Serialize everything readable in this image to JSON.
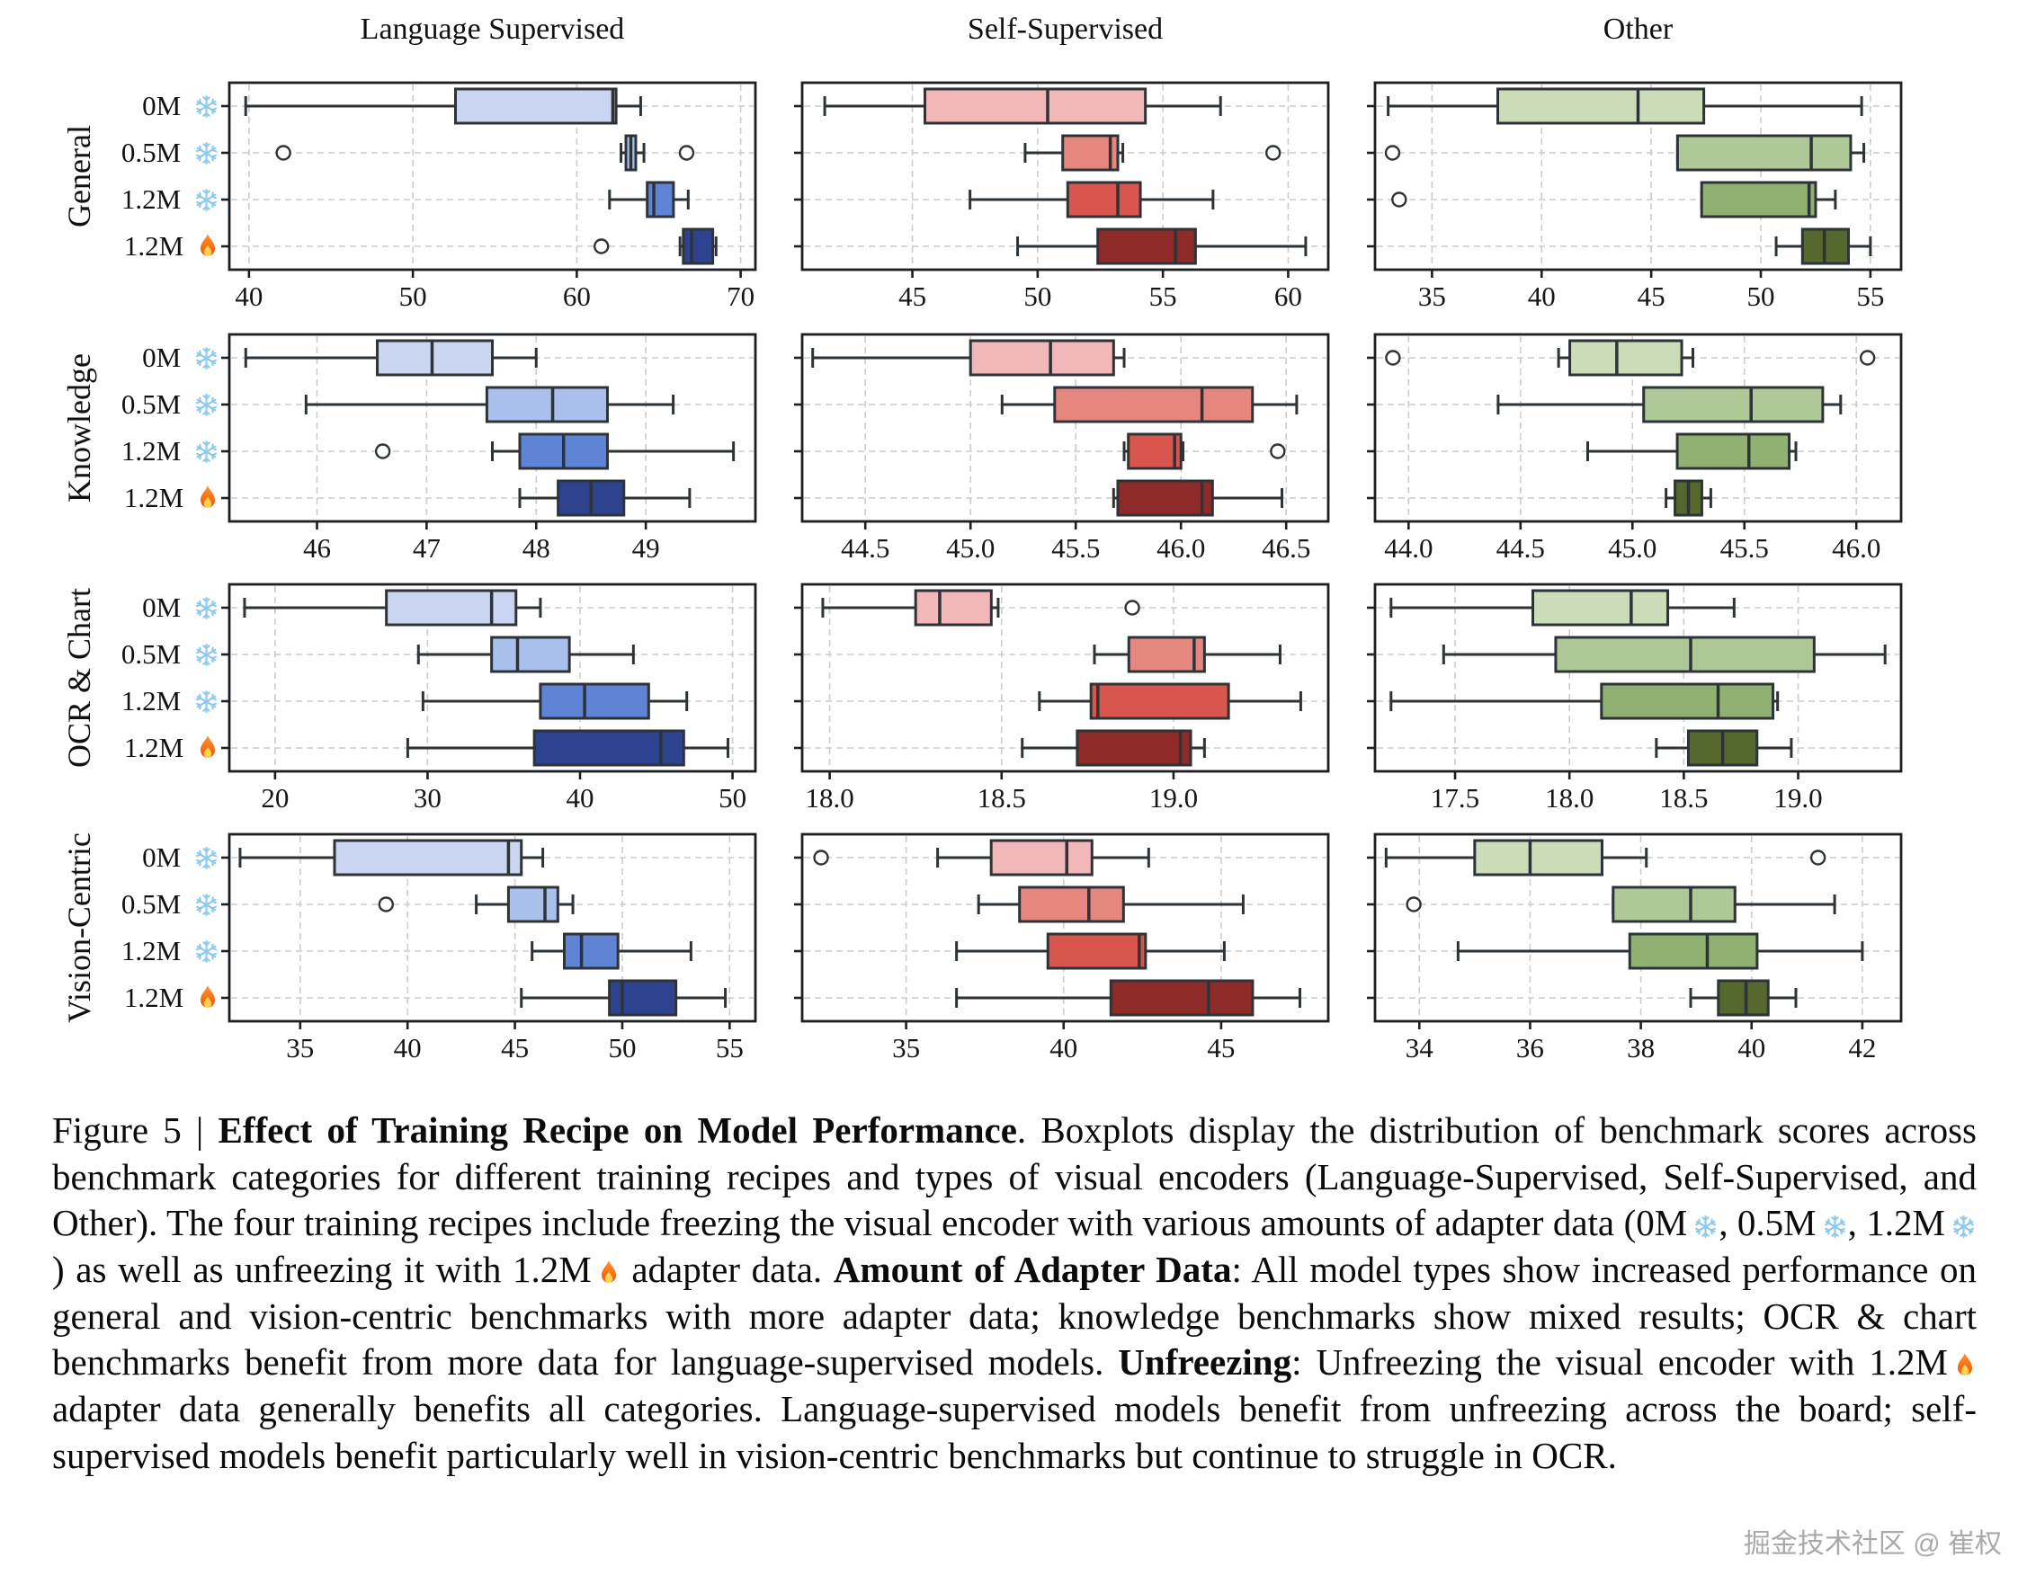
{
  "figure": {
    "col_titles": [
      "Language Supervised",
      "Self-Supervised",
      "Other"
    ],
    "row_labels": [
      "General",
      "Knowledge",
      "OCR & Chart",
      "Vision-Centric"
    ],
    "recipes": [
      "0M {snow}",
      "0.5M {snow}",
      "1.2M {snow}",
      "1.2M {fire}"
    ],
    "icons": {
      "snow": "snowflake-icon",
      "fire": "fire-icon"
    },
    "colors": {
      "language_supervised": [
        "#c9d5f1",
        "#a9c0ec",
        "#5f84d5",
        "#2e4390"
      ],
      "self_supervised": [
        "#f2b7b8",
        "#e6877f",
        "#d8564d",
        "#8e2b28"
      ],
      "other": [
        "#cbdcb8",
        "#afc897",
        "#91b173",
        "#55682e"
      ],
      "box_edge": "#2e3338",
      "grid": "#cccccc",
      "spine": "#1b1f23",
      "snowflake": "#8ec9ee",
      "fire_outer": "#f97316",
      "fire_inner": "#ffd34d"
    }
  },
  "chart_data": [
    {
      "type": "boxplot",
      "orientation": "horizontal",
      "row": "General",
      "col": "Language Supervised",
      "xlim": [
        38.8,
        70.9
      ],
      "tick_values": [
        40,
        50,
        60,
        70
      ],
      "tick_labels": [
        "40",
        "50",
        "60",
        "70"
      ],
      "boxes": [
        {
          "label": "0M snow",
          "whislo": 39.8,
          "q1": 52.6,
          "med": 62.2,
          "q3": 62.4,
          "whishi": 63.9,
          "outliers": []
        },
        {
          "label": "0.5M snow",
          "whislo": 62.7,
          "q1": 63.0,
          "med": 63.3,
          "q3": 63.6,
          "whishi": 64.1,
          "outliers": [
            42.1,
            66.7
          ]
        },
        {
          "label": "1.2M snow",
          "whislo": 62.0,
          "q1": 64.3,
          "med": 64.7,
          "q3": 65.9,
          "whishi": 66.8,
          "outliers": []
        },
        {
          "label": "1.2M fire",
          "whislo": 66.3,
          "q1": 66.5,
          "med": 67.0,
          "q3": 68.3,
          "whishi": 68.5,
          "outliers": [
            61.5
          ]
        }
      ]
    },
    {
      "type": "boxplot",
      "orientation": "horizontal",
      "row": "General",
      "col": "Self-Supervised",
      "xlim": [
        40.6,
        61.6
      ],
      "tick_values": [
        45,
        50,
        55,
        60
      ],
      "tick_labels": [
        "45",
        "50",
        "55",
        "60"
      ],
      "boxes": [
        {
          "label": "0M snow",
          "whislo": 41.5,
          "q1": 45.5,
          "med": 50.4,
          "q3": 54.3,
          "whishi": 57.3,
          "outliers": []
        },
        {
          "label": "0.5M snow",
          "whislo": 49.5,
          "q1": 51.0,
          "med": 52.9,
          "q3": 53.2,
          "whishi": 53.4,
          "outliers": [
            59.4
          ]
        },
        {
          "label": "1.2M snow",
          "whislo": 47.3,
          "q1": 51.2,
          "med": 53.2,
          "q3": 54.1,
          "whishi": 57.0,
          "outliers": []
        },
        {
          "label": "1.2M fire",
          "whislo": 49.2,
          "q1": 52.4,
          "med": 55.5,
          "q3": 56.3,
          "whishi": 60.7,
          "outliers": []
        }
      ]
    },
    {
      "type": "boxplot",
      "orientation": "horizontal",
      "row": "General",
      "col": "Other",
      "xlim": [
        32.4,
        56.4
      ],
      "tick_values": [
        35,
        40,
        45,
        50,
        55
      ],
      "tick_labels": [
        "35",
        "40",
        "45",
        "50",
        "55"
      ],
      "boxes": [
        {
          "label": "0M snow",
          "whislo": 33.0,
          "q1": 38.0,
          "med": 44.4,
          "q3": 47.4,
          "whishi": 54.6,
          "outliers": []
        },
        {
          "label": "0.5M snow",
          "whislo": 46.2,
          "q1": 46.2,
          "med": 52.3,
          "q3": 54.1,
          "whishi": 54.7,
          "outliers": [
            33.2
          ]
        },
        {
          "label": "1.2M snow",
          "whislo": 47.3,
          "q1": 47.3,
          "med": 52.2,
          "q3": 52.5,
          "whishi": 53.4,
          "outliers": [
            33.5
          ]
        },
        {
          "label": "1.2M fire",
          "whislo": 50.7,
          "q1": 51.9,
          "med": 52.9,
          "q3": 54.0,
          "whishi": 55.0,
          "outliers": []
        }
      ]
    },
    {
      "type": "boxplot",
      "orientation": "horizontal",
      "row": "Knowledge",
      "col": "Language Supervised",
      "xlim": [
        45.2,
        50.0
      ],
      "tick_values": [
        46,
        47,
        48,
        49
      ],
      "tick_labels": [
        "46",
        "47",
        "48",
        "49"
      ],
      "boxes": [
        {
          "label": "0M snow",
          "whislo": 45.35,
          "q1": 46.55,
          "med": 47.05,
          "q3": 47.6,
          "whishi": 48.0,
          "outliers": []
        },
        {
          "label": "0.5M snow",
          "whislo": 45.9,
          "q1": 47.55,
          "med": 48.15,
          "q3": 48.65,
          "whishi": 49.25,
          "outliers": []
        },
        {
          "label": "1.2M snow",
          "whislo": 47.6,
          "q1": 47.85,
          "med": 48.25,
          "q3": 48.65,
          "whishi": 49.8,
          "outliers": [
            46.6
          ]
        },
        {
          "label": "1.2M fire",
          "whislo": 47.85,
          "q1": 48.2,
          "med": 48.5,
          "q3": 48.8,
          "whishi": 49.4,
          "outliers": []
        }
      ]
    },
    {
      "type": "boxplot",
      "orientation": "horizontal",
      "row": "Knowledge",
      "col": "Self-Supervised",
      "xlim": [
        44.2,
        46.7
      ],
      "tick_values": [
        44.5,
        45.0,
        45.5,
        46.0,
        46.5
      ],
      "tick_labels": [
        "44.5",
        "45.0",
        "45.5",
        "46.0",
        "46.5"
      ],
      "boxes": [
        {
          "label": "0M snow",
          "whislo": 44.25,
          "q1": 45.0,
          "med": 45.38,
          "q3": 45.68,
          "whishi": 45.73,
          "outliers": []
        },
        {
          "label": "0.5M snow",
          "whislo": 45.15,
          "q1": 45.4,
          "med": 46.1,
          "q3": 46.34,
          "whishi": 46.55,
          "outliers": []
        },
        {
          "label": "1.2M snow",
          "whislo": 45.73,
          "q1": 45.75,
          "med": 45.97,
          "q3": 46.0,
          "whishi": 46.01,
          "outliers": [
            46.46
          ]
        },
        {
          "label": "1.2M fire",
          "whislo": 45.68,
          "q1": 45.7,
          "med": 46.1,
          "q3": 46.15,
          "whishi": 46.48,
          "outliers": []
        }
      ]
    },
    {
      "type": "boxplot",
      "orientation": "horizontal",
      "row": "Knowledge",
      "col": "Other",
      "xlim": [
        43.85,
        46.2
      ],
      "tick_values": [
        44.0,
        44.5,
        45.0,
        45.5,
        46.0
      ],
      "tick_labels": [
        "44.0",
        "44.5",
        "45.0",
        "45.5",
        "46.0"
      ],
      "boxes": [
        {
          "label": "0M snow",
          "whislo": 44.67,
          "q1": 44.72,
          "med": 44.93,
          "q3": 45.22,
          "whishi": 45.27,
          "outliers": [
            43.93,
            46.05
          ]
        },
        {
          "label": "0.5M snow",
          "whislo": 44.4,
          "q1": 45.05,
          "med": 45.53,
          "q3": 45.85,
          "whishi": 45.93,
          "outliers": []
        },
        {
          "label": "1.2M snow",
          "whislo": 44.8,
          "q1": 45.2,
          "med": 45.52,
          "q3": 45.7,
          "whishi": 45.73,
          "outliers": []
        },
        {
          "label": "1.2M fire",
          "whislo": 45.15,
          "q1": 45.19,
          "med": 45.25,
          "q3": 45.31,
          "whishi": 45.35,
          "outliers": []
        }
      ]
    },
    {
      "type": "boxplot",
      "orientation": "horizontal",
      "row": "OCR & Chart",
      "col": "Language Supervised",
      "xlim": [
        17.0,
        51.5
      ],
      "tick_values": [
        20,
        30,
        40,
        50
      ],
      "tick_labels": [
        "20",
        "30",
        "40",
        "50"
      ],
      "boxes": [
        {
          "label": "0M snow",
          "whislo": 18.0,
          "q1": 27.3,
          "med": 34.2,
          "q3": 35.8,
          "whishi": 37.4,
          "outliers": []
        },
        {
          "label": "0.5M snow",
          "whislo": 29.4,
          "q1": 34.2,
          "med": 35.9,
          "q3": 39.3,
          "whishi": 43.5,
          "outliers": []
        },
        {
          "label": "1.2M snow",
          "whislo": 29.7,
          "q1": 37.4,
          "med": 40.3,
          "q3": 44.5,
          "whishi": 47.0,
          "outliers": []
        },
        {
          "label": "1.2M fire",
          "whislo": 28.7,
          "q1": 37.0,
          "med": 45.3,
          "q3": 46.8,
          "whishi": 49.7,
          "outliers": []
        }
      ]
    },
    {
      "type": "boxplot",
      "orientation": "horizontal",
      "row": "OCR & Chart",
      "col": "Self-Supervised",
      "xlim": [
        17.92,
        19.45
      ],
      "tick_values": [
        18.0,
        18.5,
        19.0
      ],
      "tick_labels": [
        "18.0",
        "18.5",
        "19.0"
      ],
      "boxes": [
        {
          "label": "0M snow",
          "whislo": 17.98,
          "q1": 18.25,
          "med": 18.32,
          "q3": 18.47,
          "whishi": 18.49,
          "outliers": [
            18.88
          ]
        },
        {
          "label": "0.5M snow",
          "whislo": 18.77,
          "q1": 18.87,
          "med": 19.06,
          "q3": 19.09,
          "whishi": 19.31,
          "outliers": []
        },
        {
          "label": "1.2M snow",
          "whislo": 18.61,
          "q1": 18.76,
          "med": 18.78,
          "q3": 19.16,
          "whishi": 19.37,
          "outliers": []
        },
        {
          "label": "1.2M fire",
          "whislo": 18.56,
          "q1": 18.72,
          "med": 19.02,
          "q3": 19.05,
          "whishi": 19.09,
          "outliers": []
        }
      ]
    },
    {
      "type": "boxplot",
      "orientation": "horizontal",
      "row": "OCR & Chart",
      "col": "Other",
      "xlim": [
        17.15,
        19.45
      ],
      "tick_values": [
        17.5,
        18.0,
        18.5,
        19.0
      ],
      "tick_labels": [
        "17.5",
        "18.0",
        "18.5",
        "19.0"
      ],
      "boxes": [
        {
          "label": "0M snow",
          "whislo": 17.22,
          "q1": 17.84,
          "med": 18.27,
          "q3": 18.43,
          "whishi": 18.72,
          "outliers": []
        },
        {
          "label": "0.5M snow",
          "whislo": 17.45,
          "q1": 17.94,
          "med": 18.53,
          "q3": 19.07,
          "whishi": 19.38,
          "outliers": []
        },
        {
          "label": "1.2M snow",
          "whislo": 17.22,
          "q1": 18.14,
          "med": 18.65,
          "q3": 18.89,
          "whishi": 18.91,
          "outliers": []
        },
        {
          "label": "1.2M fire",
          "whislo": 18.38,
          "q1": 18.52,
          "med": 18.67,
          "q3": 18.82,
          "whishi": 18.97,
          "outliers": []
        }
      ]
    },
    {
      "type": "boxplot",
      "orientation": "horizontal",
      "row": "Vision-Centric",
      "col": "Language Supervised",
      "xlim": [
        31.7,
        56.2
      ],
      "tick_values": [
        35,
        40,
        45,
        50,
        55
      ],
      "tick_labels": [
        "35",
        "40",
        "45",
        "50",
        "55"
      ],
      "boxes": [
        {
          "label": "0M snow",
          "whislo": 32.2,
          "q1": 36.6,
          "med": 44.7,
          "q3": 45.3,
          "whishi": 46.3,
          "outliers": []
        },
        {
          "label": "0.5M snow",
          "whislo": 43.2,
          "q1": 44.7,
          "med": 46.4,
          "q3": 47.0,
          "whishi": 47.7,
          "outliers": [
            39.0
          ]
        },
        {
          "label": "1.2M snow",
          "whislo": 45.8,
          "q1": 47.3,
          "med": 48.1,
          "q3": 49.8,
          "whishi": 53.2,
          "outliers": []
        },
        {
          "label": "1.2M fire",
          "whislo": 45.3,
          "q1": 49.4,
          "med": 50.0,
          "q3": 52.5,
          "whishi": 54.8,
          "outliers": []
        }
      ]
    },
    {
      "type": "boxplot",
      "orientation": "horizontal",
      "row": "Vision-Centric",
      "col": "Self-Supervised",
      "xlim": [
        31.7,
        48.4
      ],
      "tick_values": [
        35,
        40,
        45
      ],
      "tick_labels": [
        "35",
        "40",
        "45"
      ],
      "boxes": [
        {
          "label": "0M snow",
          "whislo": 36.0,
          "q1": 37.7,
          "med": 40.1,
          "q3": 40.9,
          "whishi": 42.7,
          "outliers": [
            32.3
          ]
        },
        {
          "label": "0.5M snow",
          "whislo": 37.3,
          "q1": 38.6,
          "med": 40.8,
          "q3": 41.9,
          "whishi": 45.7,
          "outliers": []
        },
        {
          "label": "1.2M snow",
          "whislo": 36.6,
          "q1": 39.5,
          "med": 42.4,
          "q3": 42.6,
          "whishi": 45.1,
          "outliers": []
        },
        {
          "label": "1.2M fire",
          "whislo": 36.6,
          "q1": 41.5,
          "med": 44.6,
          "q3": 46.0,
          "whishi": 47.5,
          "outliers": []
        }
      ]
    },
    {
      "type": "boxplot",
      "orientation": "horizontal",
      "row": "Vision-Centric",
      "col": "Other",
      "xlim": [
        33.2,
        42.7
      ],
      "tick_values": [
        34,
        36,
        38,
        40,
        42
      ],
      "tick_labels": [
        "34",
        "36",
        "38",
        "40",
        "42"
      ],
      "boxes": [
        {
          "label": "0M snow",
          "whislo": 33.4,
          "q1": 35.0,
          "med": 36.0,
          "q3": 37.3,
          "whishi": 38.1,
          "outliers": [
            41.2
          ]
        },
        {
          "label": "0.5M snow",
          "whislo": 37.5,
          "q1": 37.5,
          "med": 38.9,
          "q3": 39.7,
          "whishi": 41.5,
          "outliers": [
            33.9
          ]
        },
        {
          "label": "1.2M snow",
          "whislo": 34.7,
          "q1": 37.8,
          "med": 39.2,
          "q3": 40.1,
          "whishi": 42.0,
          "outliers": []
        },
        {
          "label": "1.2M fire",
          "whislo": 38.9,
          "q1": 39.4,
          "med": 39.9,
          "q3": 40.3,
          "whishi": 40.8,
          "outliers": []
        }
      ]
    }
  ],
  "caption": {
    "text": "Figure 5 | **Effect of Training Recipe on Model Performance**.  Boxplots display the distribution of benchmark scores across benchmark categories for different training recipes and types of visual encoders (Language-Supervised, Self-Supervised, and Other).  The four training recipes include freezing the visual encoder with various amounts of adapter data (0M{snow}, 0.5M{snow}, 1.2M{snow}) as well as unfreezing it with 1.2M{fire} adapter data. **Amount of Adapter Data**: All model types show increased performance on general and vision-centric benchmarks with more adapter data; knowledge benchmarks show mixed results; OCR & chart benchmarks benefit from more data for language-supervised models. **Unfreezing**: Unfreezing the visual encoder with 1.2M{fire} adapter data generally benefits all categories.  Language-supervised models benefit from unfreezing across the board; self-supervised models benefit particularly well in vision-centric benchmarks but continue to struggle in OCR."
  },
  "watermark": "掘金技术社区 @ 崔权"
}
